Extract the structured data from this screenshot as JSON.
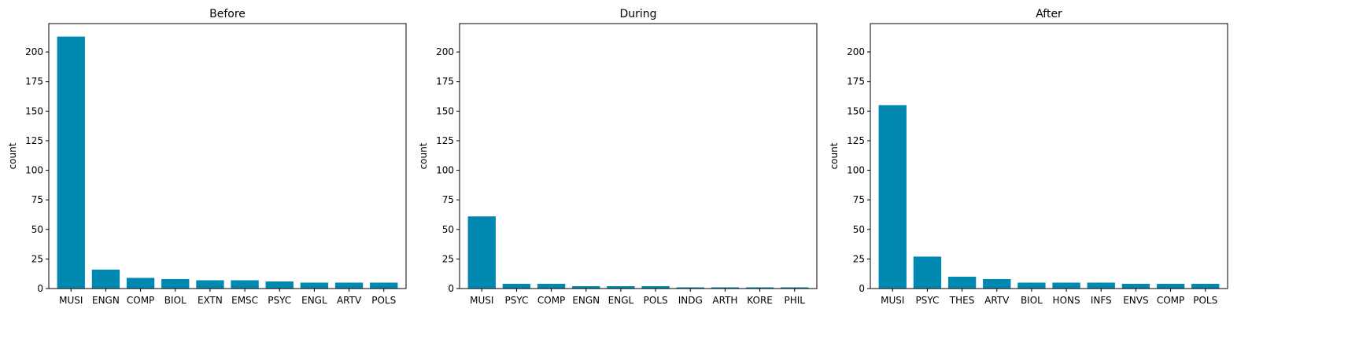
{
  "chart_data": [
    {
      "type": "bar",
      "title": "Before",
      "xlabel": "",
      "ylabel": "count",
      "ylim": [
        0,
        224
      ],
      "yticks": [
        0,
        25,
        50,
        75,
        100,
        125,
        150,
        175,
        200
      ],
      "categories": [
        "MUSI",
        "ENGN",
        "COMP",
        "BIOL",
        "EXTN",
        "EMSC",
        "PSYC",
        "ENGL",
        "ARTV",
        "POLS"
      ],
      "values": [
        213,
        16,
        9,
        8,
        7,
        7,
        6,
        5,
        5,
        5
      ],
      "bar_color": "#0088b0"
    },
    {
      "type": "bar",
      "title": "During",
      "xlabel": "",
      "ylabel": "count",
      "ylim": [
        0,
        224
      ],
      "yticks": [
        0,
        25,
        50,
        75,
        100,
        125,
        150,
        175,
        200
      ],
      "categories": [
        "MUSI",
        "PSYC",
        "COMP",
        "ENGN",
        "ENGL",
        "POLS",
        "INDG",
        "ARTH",
        "KORE",
        "PHIL"
      ],
      "values": [
        61,
        4,
        4,
        2,
        2,
        2,
        1,
        1,
        1,
        1
      ],
      "bar_color": "#0088b0"
    },
    {
      "type": "bar",
      "title": "After",
      "xlabel": "",
      "ylabel": "count",
      "ylim": [
        0,
        224
      ],
      "yticks": [
        0,
        25,
        50,
        75,
        100,
        125,
        150,
        175,
        200
      ],
      "categories": [
        "MUSI",
        "PSYC",
        "THES",
        "ARTV",
        "BIOL",
        "HONS",
        "INFS",
        "ENVS",
        "COMP",
        "POLS"
      ],
      "values": [
        155,
        27,
        10,
        8,
        5,
        5,
        5,
        4,
        4,
        4
      ],
      "bar_color": "#0088b0"
    }
  ]
}
